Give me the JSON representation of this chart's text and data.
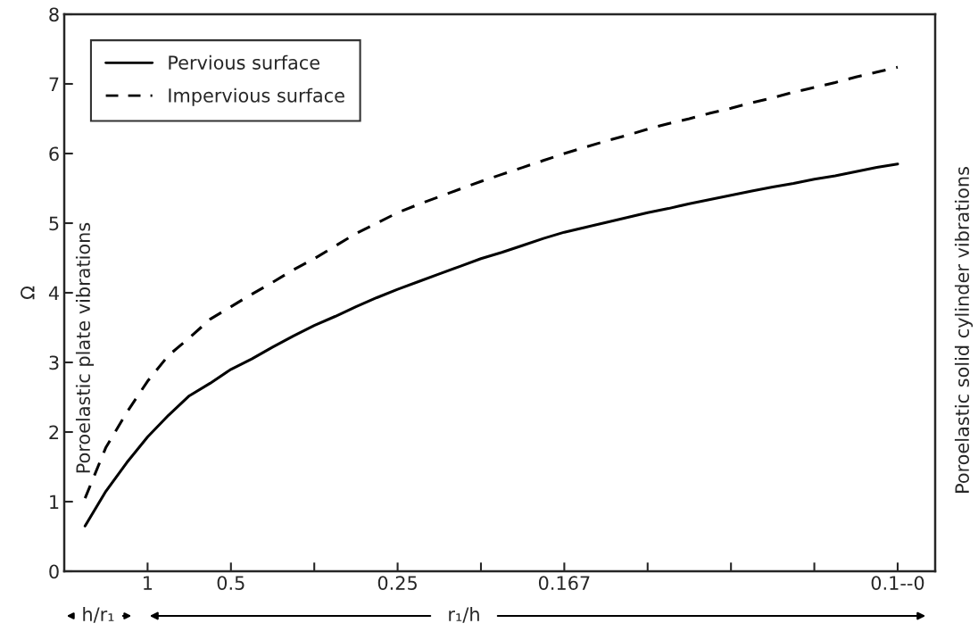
{
  "chart_data": {
    "type": "line",
    "ylabel": "Ω",
    "categories": [
      null,
      null,
      null,
      "1",
      null,
      null,
      null,
      "0.5",
      null,
      null,
      null,
      null,
      null,
      null,
      null,
      "0.25",
      null,
      null,
      null,
      null,
      null,
      null,
      null,
      "0.167",
      null,
      null,
      null,
      null,
      null,
      null,
      null,
      null,
      null,
      null,
      null,
      null,
      null,
      null,
      null,
      "0.1--0"
    ],
    "series": [
      {
        "name": "Pervious surface",
        "color": "#000000",
        "line_style": "solid",
        "values": [
          0.65,
          1.15,
          1.56,
          1.93,
          2.24,
          2.52,
          2.7,
          2.9,
          3.05,
          3.22,
          3.38,
          3.53,
          3.66,
          3.8,
          3.93,
          4.05,
          4.16,
          4.27,
          4.38,
          4.49,
          4.58,
          4.68,
          4.78,
          4.87,
          4.94,
          5.01,
          5.08,
          5.15,
          5.21,
          5.28,
          5.34,
          5.4,
          5.46,
          5.52,
          5.57,
          5.63,
          5.68,
          5.74,
          5.8,
          5.85
        ]
      },
      {
        "name": "Impervious surface",
        "color": "#000000",
        "line_style": "dashed",
        "values": [
          1.05,
          1.78,
          2.28,
          2.73,
          3.1,
          3.35,
          3.62,
          3.8,
          3.98,
          4.15,
          4.33,
          4.49,
          4.67,
          4.85,
          5.0,
          5.15,
          5.27,
          5.38,
          5.49,
          5.6,
          5.7,
          5.8,
          5.9,
          6.0,
          6.09,
          6.18,
          6.26,
          6.35,
          6.43,
          6.5,
          6.58,
          6.65,
          6.73,
          6.8,
          6.88,
          6.95,
          7.02,
          7.1,
          7.17,
          7.24
        ]
      }
    ],
    "ylim": [
      0,
      8
    ],
    "yticks": [
      0,
      1,
      2,
      3,
      4,
      5,
      6,
      7,
      8
    ],
    "grid": false,
    "legend": "top left",
    "annotations": [
      "Poroelastic plate vibrations",
      "Poroelastic solid cylinder vibrations",
      "h/r₁",
      "r₁/h"
    ]
  }
}
